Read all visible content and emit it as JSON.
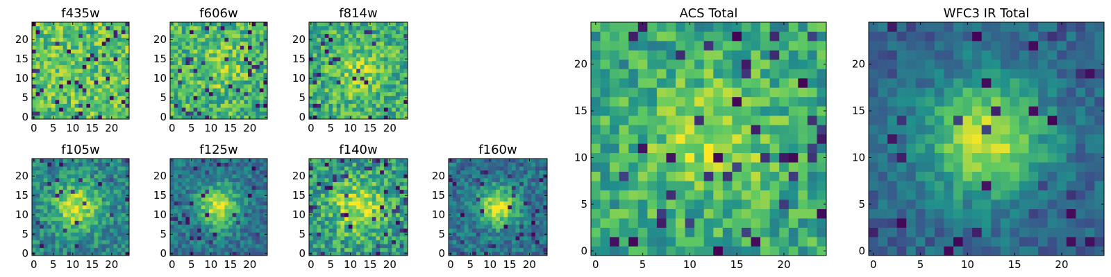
{
  "figure": {
    "width": 1600,
    "height": 400,
    "background": "#ffffff"
  },
  "colormap": {
    "name": "viridis",
    "stops": [
      "#440154",
      "#3b528b",
      "#21918c",
      "#5ec962",
      "#fde725"
    ]
  },
  "chart_data": [
    {
      "type": "heatmap",
      "title": "f435w",
      "grid": [
        25,
        25
      ],
      "xlim": [
        0,
        24
      ],
      "ylim": [
        0,
        24
      ],
      "xticks": [
        0,
        5,
        10,
        15,
        20
      ],
      "yticks": [
        0,
        5,
        10,
        15,
        20
      ],
      "center": [
        12,
        12
      ],
      "peak_sigma": 0,
      "peak_amp": 0,
      "base": 0.72,
      "noise": 0.22,
      "dark_fraction": 0.07,
      "seed": 11
    },
    {
      "type": "heatmap",
      "title": "f606w",
      "grid": [
        25,
        25
      ],
      "xlim": [
        0,
        24
      ],
      "ylim": [
        0,
        24
      ],
      "xticks": [
        0,
        5,
        10,
        15,
        20
      ],
      "yticks": [
        0,
        5,
        10,
        15,
        20
      ],
      "center": [
        12,
        13
      ],
      "peak_sigma": 4.5,
      "peak_amp": 0.15,
      "base": 0.66,
      "noise": 0.22,
      "dark_fraction": 0.06,
      "seed": 23
    },
    {
      "type": "heatmap",
      "title": "f814w",
      "grid": [
        25,
        25
      ],
      "xlim": [
        0,
        24
      ],
      "ylim": [
        0,
        24
      ],
      "xticks": [
        0,
        5,
        10,
        15,
        20
      ],
      "yticks": [
        0,
        5,
        10,
        15,
        20
      ],
      "center": [
        12,
        12
      ],
      "peak_sigma": 4.5,
      "peak_amp": 0.2,
      "base": 0.63,
      "noise": 0.22,
      "dark_fraction": 0.05,
      "seed": 37
    },
    {
      "type": "heatmap",
      "title": "f105w",
      "grid": [
        25,
        25
      ],
      "xlim": [
        0,
        24
      ],
      "ylim": [
        0,
        24
      ],
      "xticks": [
        0,
        5,
        10,
        15,
        20
      ],
      "yticks": [
        0,
        5,
        10,
        15,
        20
      ],
      "center": [
        11,
        12
      ],
      "peak_sigma": 4.5,
      "peak_amp": 0.45,
      "base": 0.45,
      "noise": 0.18,
      "dark_fraction": 0.05,
      "seed": 41
    },
    {
      "type": "heatmap",
      "title": "f125w",
      "grid": [
        25,
        25
      ],
      "xlim": [
        0,
        24
      ],
      "ylim": [
        0,
        24
      ],
      "xticks": [
        0,
        5,
        10,
        15,
        20
      ],
      "yticks": [
        0,
        5,
        10,
        15,
        20
      ],
      "center": [
        12,
        12
      ],
      "peak_sigma": 3.8,
      "peak_amp": 0.55,
      "base": 0.38,
      "noise": 0.16,
      "dark_fraction": 0.06,
      "seed": 53
    },
    {
      "type": "heatmap",
      "title": "f140w",
      "grid": [
        25,
        25
      ],
      "xlim": [
        0,
        24
      ],
      "ylim": [
        0,
        24
      ],
      "xticks": [
        0,
        5,
        10,
        15,
        20
      ],
      "yticks": [
        0,
        5,
        10,
        15,
        20
      ],
      "center": [
        12,
        12
      ],
      "peak_sigma": 5,
      "peak_amp": 0.35,
      "base": 0.55,
      "noise": 0.22,
      "dark_fraction": 0.06,
      "seed": 67
    },
    {
      "type": "heatmap",
      "title": "f160w",
      "grid": [
        25,
        25
      ],
      "xlim": [
        0,
        24
      ],
      "ylim": [
        0,
        24
      ],
      "xticks": [
        0,
        5,
        10,
        15,
        20
      ],
      "yticks": [
        0,
        5,
        10,
        15,
        20
      ],
      "center": [
        12,
        12
      ],
      "peak_sigma": 3.5,
      "peak_amp": 0.55,
      "base": 0.38,
      "noise": 0.16,
      "dark_fraction": 0.07,
      "seed": 79
    },
    {
      "type": "heatmap",
      "title": "ACS Total",
      "grid": [
        25,
        25
      ],
      "xlim": [
        0,
        24
      ],
      "ylim": [
        0,
        24
      ],
      "xticks": [
        0,
        5,
        10,
        15,
        20
      ],
      "yticks": [
        0,
        5,
        10,
        15,
        20
      ],
      "center": [
        12,
        12
      ],
      "peak_sigma": 4.5,
      "peak_amp": 0.28,
      "base": 0.6,
      "noise": 0.2,
      "dark_fraction": 0.06,
      "seed": 97
    },
    {
      "type": "heatmap",
      "title": "WFC3 IR Total",
      "grid": [
        25,
        25
      ],
      "xlim": [
        0,
        24
      ],
      "ylim": [
        0,
        24
      ],
      "xticks": [
        0,
        5,
        10,
        15,
        20
      ],
      "yticks": [
        0,
        5,
        10,
        15,
        20
      ],
      "center": [
        12,
        12
      ],
      "peak_sigma": 4.5,
      "peak_amp": 0.6,
      "base": 0.32,
      "noise": 0.12,
      "dark_fraction": 0.05,
      "seed": 113
    }
  ]
}
